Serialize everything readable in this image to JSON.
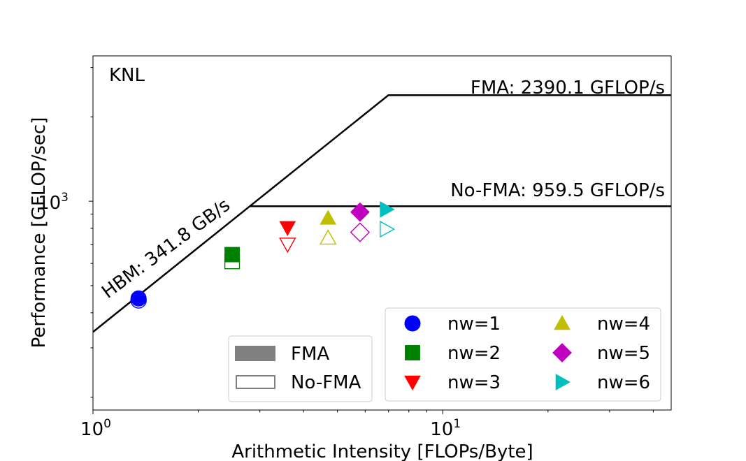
{
  "chart_data": {
    "type": "scatter",
    "panel_label": "KNL",
    "xlabel": "Arithmetic Intensity [FLOPs/Byte]",
    "ylabel": "Performance [GFLOP/sec]",
    "xscale": "log",
    "yscale": "log",
    "xlim": [
      1.0,
      45.0
    ],
    "ylim": [
      180,
      3300
    ],
    "x_major_ticks": [
      {
        "value": 1,
        "label": "10^0"
      },
      {
        "value": 10,
        "label": "10^1"
      }
    ],
    "y_major_ticks": [
      {
        "value": 1000,
        "label": "10^3"
      }
    ],
    "roofline": {
      "bandwidth_label": "HBM: 341.8 GB/s",
      "bandwidth_gbps": 341.8,
      "ceilings": [
        {
          "name": "FMA",
          "label": "FMA: 2390.1 GFLOP/s",
          "value": 2390.1
        },
        {
          "name": "No-FMA",
          "label": "No-FMA: 959.5 GFLOP/s",
          "value": 959.5
        }
      ]
    },
    "series": [
      {
        "name": "nw=1",
        "marker": "circle",
        "color": "#0000ff",
        "fma": {
          "x": 1.35,
          "y": 450
        },
        "no_fma": {
          "x": 1.35,
          "y": 443
        }
      },
      {
        "name": "nw=2",
        "marker": "square",
        "color": "#008000",
        "fma": {
          "x": 2.5,
          "y": 645
        },
        "no_fma": {
          "x": 2.5,
          "y": 610
        }
      },
      {
        "name": "nw=3",
        "marker": "triangle-down",
        "color": "#ff0000",
        "fma": {
          "x": 3.6,
          "y": 805
        },
        "no_fma": {
          "x": 3.6,
          "y": 702
        }
      },
      {
        "name": "nw=4",
        "marker": "triangle-up",
        "color": "#bfbf00",
        "fma": {
          "x": 4.7,
          "y": 870
        },
        "no_fma": {
          "x": 4.7,
          "y": 740
        }
      },
      {
        "name": "nw=5",
        "marker": "diamond",
        "color": "#bf00bf",
        "fma": {
          "x": 5.8,
          "y": 915
        },
        "no_fma": {
          "x": 5.8,
          "y": 775
        }
      },
      {
        "name": "nw=6",
        "marker": "triangle-right",
        "color": "#00bfbf",
        "fma": {
          "x": 6.9,
          "y": 935
        },
        "no_fma": {
          "x": 6.9,
          "y": 795
        }
      }
    ],
    "style_legend": {
      "placement": "lower-center",
      "entries": [
        {
          "label": "FMA",
          "style": "filled",
          "color": "#808080"
        },
        {
          "label": "No-FMA",
          "style": "hollow",
          "color": "#808080"
        }
      ]
    },
    "series_legend": {
      "placement": "lower-right",
      "columns": 2
    },
    "grid": false
  }
}
